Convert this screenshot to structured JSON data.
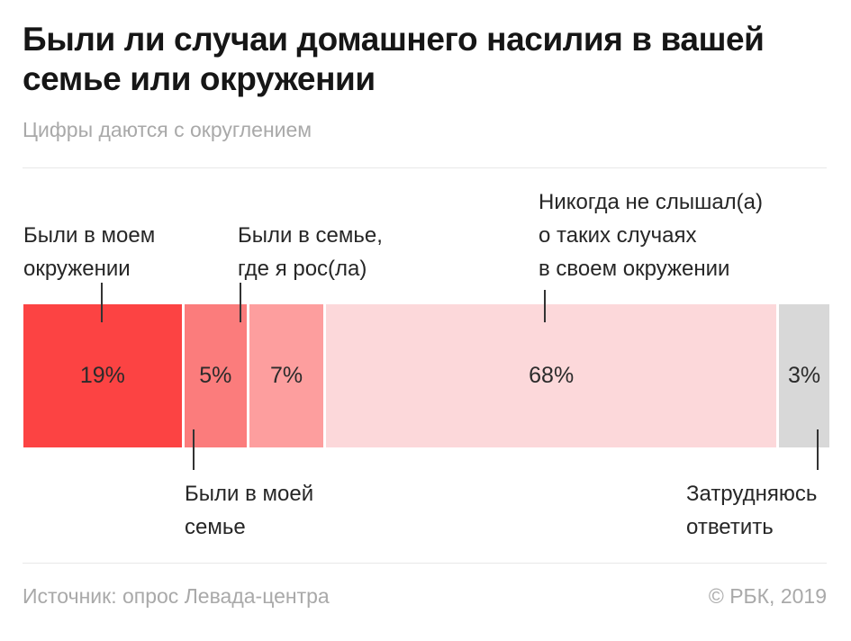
{
  "title": "Были ли случаи домашнего насилия в вашей семье или окружении",
  "subtitle": "Цифры даются с округлением",
  "footer": {
    "source": "Источник: опрос Левада-центра",
    "credit": "© РБК, 2019"
  },
  "colors": {
    "segment_1": "#fc4343",
    "segment_2": "#fb7c7c",
    "segment_3": "#fd9e9e",
    "segment_4": "#fcd8da",
    "segment_5": "#d8d8d8",
    "text_dark": "#262626",
    "text_muted": "#a9a9a9",
    "divider": "#e8e8e8",
    "connector": "#333333"
  },
  "chart_data": {
    "type": "bar",
    "variant": "horizontal-stacked-single-bar",
    "unit": "%",
    "title": "Были ли случаи домашнего насилия в вашей семье или окружении",
    "note": "Цифры даются с округлением",
    "source": "опрос Левада-центра",
    "grid": false,
    "legend_position": "callout-labels",
    "xlim": [
      0,
      102
    ],
    "segments": [
      {
        "label": "Были в моем окружении",
        "value": 19,
        "value_label": "19%",
        "color": "#fc4343",
        "callout": "above"
      },
      {
        "label": "Были в моей семье",
        "value": 5,
        "value_label": "5%",
        "color": "#fb7c7c",
        "callout": "below"
      },
      {
        "label": "Были в семье, где я рос(ла)",
        "value": 7,
        "value_label": "7%",
        "color": "#fd9e9e",
        "callout": "above"
      },
      {
        "label": "Никогда не слышал(а) о таких случаях в своем окружении",
        "value": 68,
        "value_label": "68%",
        "color": "#fcd8da",
        "callout": "above"
      },
      {
        "label": "Затрудняюсь ответить",
        "value": 3,
        "value_label": "3%",
        "color": "#d8d8d8",
        "callout": "below"
      }
    ],
    "callouts": [
      {
        "segment_index": 0,
        "placement": "above",
        "lines": [
          "Были в моем",
          "окружении"
        ]
      },
      {
        "segment_index": 2,
        "placement": "above",
        "lines": [
          "Были в семье,",
          "где я рос(ла)"
        ]
      },
      {
        "segment_index": 3,
        "placement": "above",
        "lines": [
          "Никогда не слышал(а)",
          "о таких случаях",
          "в своем окружении"
        ]
      },
      {
        "segment_index": 1,
        "placement": "below",
        "lines": [
          "Были в моей",
          "семье"
        ]
      },
      {
        "segment_index": 4,
        "placement": "below",
        "lines": [
          "Затрудняюсь",
          "ответить"
        ]
      }
    ]
  }
}
